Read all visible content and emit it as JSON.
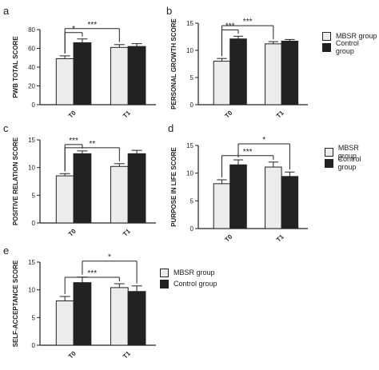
{
  "legend": {
    "mbsr": "MBSR group",
    "control": "Control group"
  },
  "colors": {
    "mbsr": "#ececec",
    "control": "#222222",
    "axis": "#222222"
  },
  "chart_data": [
    {
      "id": "a",
      "letter": "a",
      "type": "bar",
      "categories": [
        "T0",
        "T1"
      ],
      "ylabel": "PWB TOTAL SCORE",
      "ylim": [
        0,
        80
      ],
      "yticks": [
        0,
        20,
        40,
        60,
        80
      ],
      "series": [
        {
          "name": "MBSR group",
          "values": [
            49,
            61
          ],
          "errors": [
            3,
            3
          ]
        },
        {
          "name": "Control group",
          "values": [
            66,
            62
          ],
          "errors": [
            4,
            3
          ]
        }
      ],
      "annotations": [
        {
          "text": "*",
          "from": "T0-MBSR group",
          "to": "T0-Control group"
        },
        {
          "text": "***",
          "from": "T0-MBSR group",
          "to": "T1-MBSR group"
        }
      ]
    },
    {
      "id": "b",
      "letter": "b",
      "type": "bar",
      "categories": [
        "T0",
        "T1"
      ],
      "ylabel": "PERSONAL GROWTH SCORE",
      "ylim": [
        0,
        15
      ],
      "yticks": [
        0,
        5,
        10,
        15
      ],
      "series": [
        {
          "name": "MBSR group",
          "values": [
            8.0,
            11.2
          ],
          "errors": [
            0.5,
            0.4
          ]
        },
        {
          "name": "Control group",
          "values": [
            12.1,
            11.7
          ],
          "errors": [
            0.5,
            0.3
          ]
        }
      ],
      "annotations": [
        {
          "text": "***",
          "from": "T0-MBSR group",
          "to": "T0-Control group"
        },
        {
          "text": "***",
          "from": "T0-MBSR group",
          "to": "T1-MBSR group"
        }
      ]
    },
    {
      "id": "c",
      "letter": "c",
      "type": "bar",
      "categories": [
        "T0",
        "T1"
      ],
      "ylabel": "POSITIVE RELATION SCORE",
      "ylim": [
        0,
        15
      ],
      "yticks": [
        0,
        5,
        10,
        15
      ],
      "series": [
        {
          "name": "MBSR group",
          "values": [
            8.5,
            10.2
          ],
          "errors": [
            0.4,
            0.5
          ]
        },
        {
          "name": "Control group",
          "values": [
            12.5,
            12.5
          ],
          "errors": [
            0.5,
            0.6
          ]
        }
      ],
      "annotations": [
        {
          "text": "***",
          "from": "T0-MBSR group",
          "to": "T0-Control group"
        },
        {
          "text": "**",
          "from": "T0-MBSR group",
          "to": "T1-MBSR group"
        }
      ]
    },
    {
      "id": "d",
      "letter": "d",
      "type": "bar",
      "categories": [
        "T0",
        "T1"
      ],
      "ylabel": "PURPOSE IN LIFE SCORE",
      "ylim": [
        0,
        15
      ],
      "yticks": [
        0,
        5,
        10,
        15
      ],
      "series": [
        {
          "name": "MBSR group",
          "values": [
            8.1,
            11.1
          ],
          "errors": [
            0.7,
            0.9
          ]
        },
        {
          "name": "Control group",
          "values": [
            11.5,
            9.4
          ],
          "errors": [
            0.9,
            0.8
          ]
        }
      ],
      "annotations": [
        {
          "text": "***",
          "from": "T0-MBSR group",
          "to": "T1-MBSR group"
        },
        {
          "text": "*",
          "from": "T0-Control group",
          "to": "T1-Control group"
        }
      ]
    },
    {
      "id": "e",
      "letter": "e",
      "type": "bar",
      "categories": [
        "T0",
        "T1"
      ],
      "ylabel": "SELF-ACCEPTANCE SCORE",
      "ylim": [
        0,
        15
      ],
      "yticks": [
        0,
        5,
        10,
        15
      ],
      "series": [
        {
          "name": "MBSR group",
          "values": [
            8.0,
            10.4
          ],
          "errors": [
            0.8,
            0.7
          ]
        },
        {
          "name": "Control group",
          "values": [
            11.3,
            9.7
          ],
          "errors": [
            1.0,
            1.0
          ]
        }
      ],
      "annotations": [
        {
          "text": "***",
          "from": "T0-MBSR group",
          "to": "T1-MBSR group"
        },
        {
          "text": "*",
          "from": "T0-Control group",
          "to": "T1-Control group"
        }
      ]
    }
  ]
}
